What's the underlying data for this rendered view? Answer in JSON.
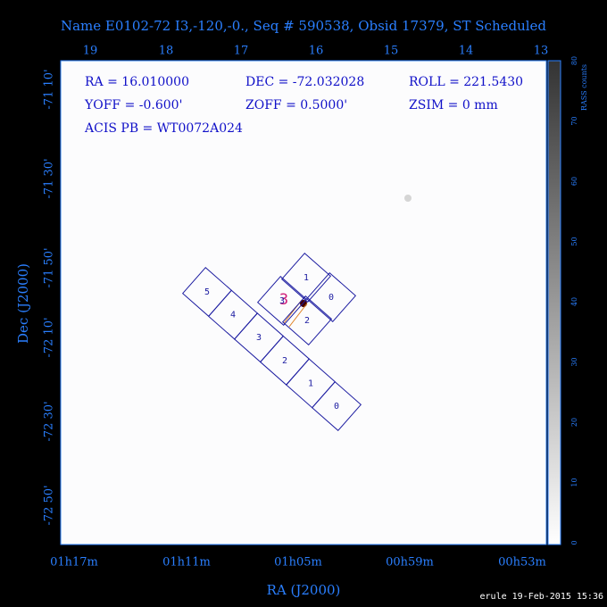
{
  "title": "Name E0102-72 I3,-120,-0., Seq # 590538, Obsid 17379, ST Scheduled",
  "info": [
    "RA = 16.010000",
    "DEC = -72.032028",
    "ROLL = 221.5430",
    "YOFF = -0.600'",
    "ZOFF = 0.5000'",
    "ZSIM = 0 mm",
    "ACIS PB = WT0072A024"
  ],
  "top_axis_ticks": [
    "19",
    "18",
    "17",
    "16",
    "15",
    "14",
    "13"
  ],
  "left_axis_ticks": [
    "-71 10'",
    "-71 30'",
    "-71 50'",
    "-72 10'",
    "-72 30'",
    "-72 50'"
  ],
  "bottom_axis_ticks": [
    "01h17m",
    "01h11m",
    "01h05m",
    "00h59m",
    "00h53m"
  ],
  "x_label": "RA (J2000)",
  "y_label": "Dec (J2000)",
  "colorbar": {
    "label": "RASS counts",
    "ticks": [
      "0",
      "10",
      "20",
      "30",
      "40",
      "50",
      "60",
      "70",
      "80"
    ]
  },
  "acis_s_chips": [
    "5",
    "4",
    "3",
    "2",
    "1",
    "0"
  ],
  "acis_i_chips": [
    "1",
    "0",
    "3",
    "2"
  ],
  "footer": "erule 19-Feb-2015 15:36"
}
